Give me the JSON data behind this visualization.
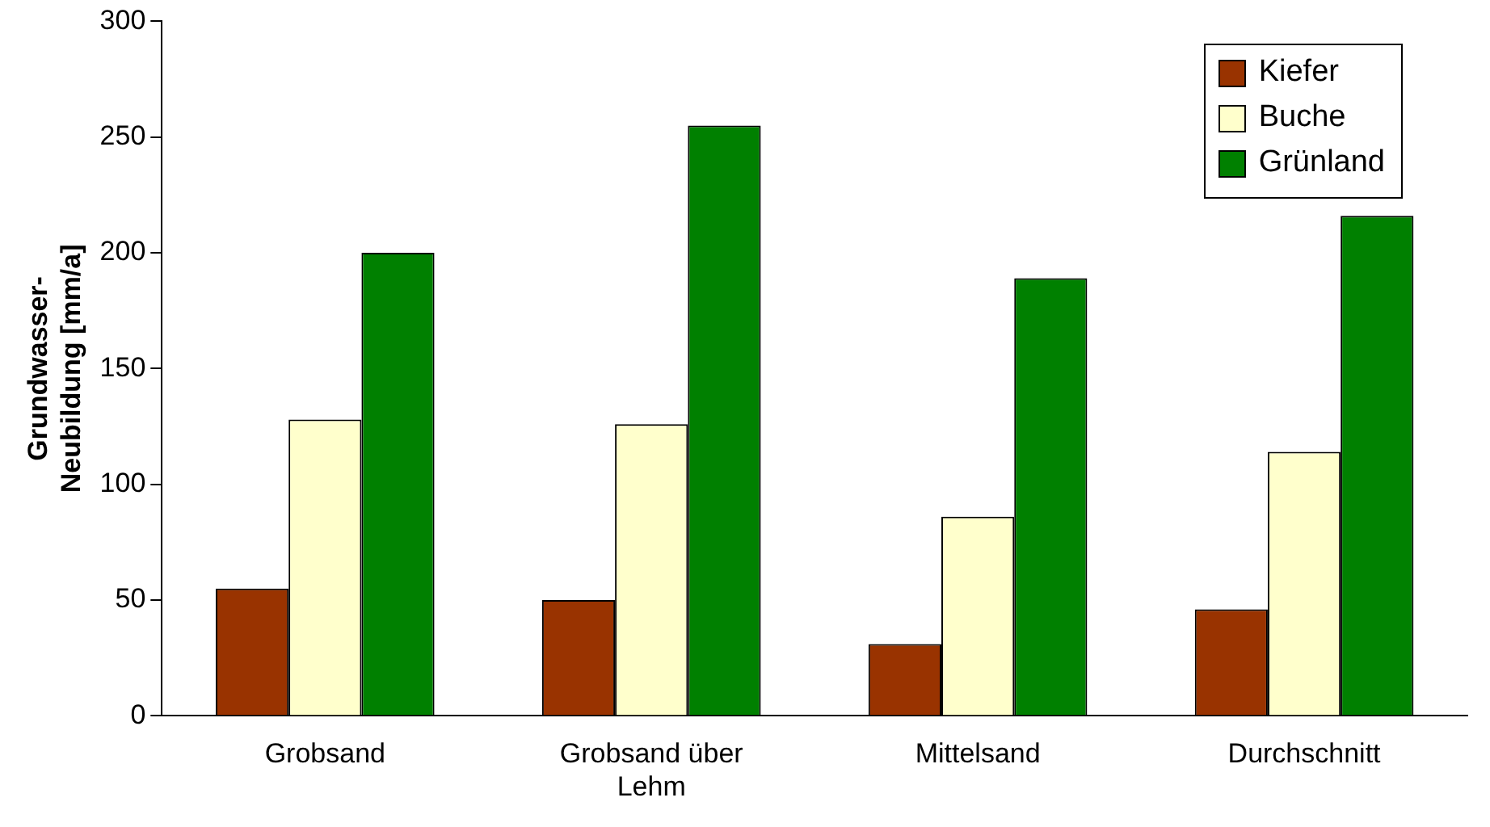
{
  "chart_data": {
    "type": "bar",
    "ylabel": "Grundwasser-Neubildung [mm/a]",
    "categories": [
      "Grobsand",
      "Grobsand über Lehm",
      "Mittelsand",
      "Durchschnitt"
    ],
    "series": [
      {
        "name": "Kiefer",
        "color": "#993300",
        "values": [
          55,
          50,
          31,
          46
        ]
      },
      {
        "name": "Buche",
        "color": "#ffffcc",
        "values": [
          128,
          126,
          86,
          114
        ]
      },
      {
        "name": "Grünland",
        "color": "#008000",
        "values": [
          200,
          255,
          189,
          216
        ]
      }
    ],
    "ylim": [
      0,
      300
    ],
    "yticks": [
      0,
      50,
      100,
      150,
      200,
      250,
      300
    ],
    "grid": false,
    "legend": "top right"
  }
}
